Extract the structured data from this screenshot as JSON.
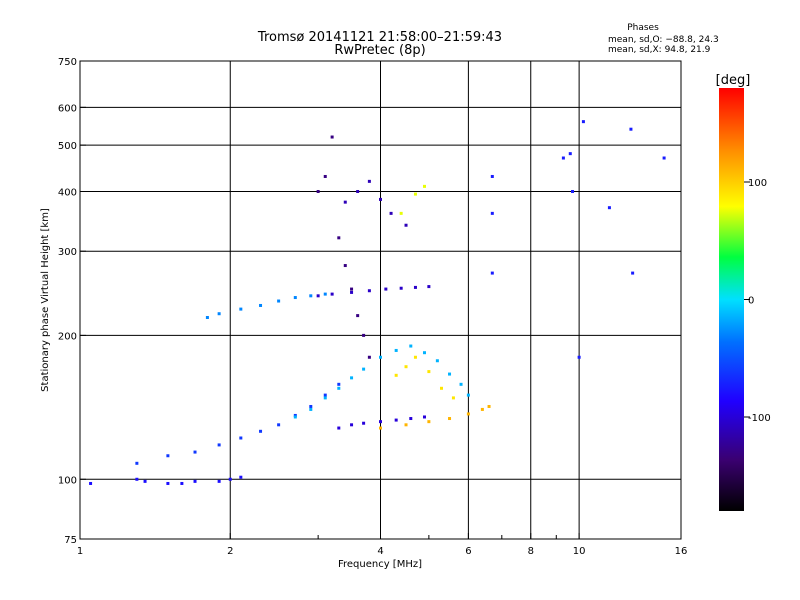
{
  "chart_data": {
    "type": "scatter",
    "title": "Tromsø 20141121 21:58:00–21:59:43",
    "subtitle": "RwPretec (8p)",
    "xlabel": "Frequency [MHz]",
    "ylabel": "Stationary phase Virtual Height [km]",
    "x_scale": "log",
    "y_scale": "log",
    "xlim": [
      1,
      16
    ],
    "ylim": [
      75,
      750
    ],
    "x_ticks": [
      1,
      2,
      4,
      6,
      8,
      10,
      16
    ],
    "x_tick_labels": [
      "1",
      "2",
      "4",
      "6",
      "8",
      "10",
      "16"
    ],
    "x_minor_ticks": [
      3,
      5,
      7,
      9
    ],
    "y_ticks": [
      75,
      100,
      200,
      300,
      400,
      500,
      600,
      750
    ],
    "y_tick_labels": [
      "75",
      "100",
      "200",
      "300",
      "400",
      "500",
      "600",
      "750"
    ],
    "grid": true,
    "legend": {
      "title": "Phases",
      "lines": [
        "mean, sd,O: −88.8, 24.3",
        "mean, sd,X:  94.8, 21.9"
      ],
      "position": "top-right"
    },
    "colorbar": {
      "label": "[deg]",
      "range": [
        -180,
        180
      ],
      "ticks": [
        100,
        0,
        -100
      ],
      "tick_labels": [
        "100",
        "0",
        "-100"
      ],
      "colormap": "rainbow"
    },
    "series": [
      {
        "x": [
          1.05,
          1.3,
          1.35,
          1.5,
          1.6,
          1.7,
          1.9,
          2.0,
          2.1
        ],
        "y": [
          98,
          100,
          99,
          98,
          98,
          99,
          99,
          100,
          101
        ],
        "phase": -105
      },
      {
        "x": [
          1.3,
          1.5,
          1.7,
          1.9,
          2.1,
          2.3,
          2.5,
          2.7,
          2.9,
          3.1,
          3.3
        ],
        "y": [
          108,
          112,
          114,
          118,
          122,
          126,
          130,
          136,
          142,
          150,
          158
        ],
        "phase": -90
      },
      {
        "x": [
          2.7,
          2.9,
          3.1,
          3.3,
          3.5,
          3.7,
          4.0,
          4.3,
          4.6,
          4.9,
          5.2,
          5.5,
          5.8,
          6.0
        ],
        "y": [
          135,
          140,
          148,
          155,
          163,
          170,
          180,
          186,
          190,
          184,
          177,
          166,
          158,
          150
        ],
        "phase": -40
      },
      {
        "x": [
          1.8,
          1.9,
          2.1,
          2.3,
          2.5,
          2.7,
          2.9,
          3.1
        ],
        "y": [
          218,
          222,
          227,
          231,
          236,
          240,
          242,
          244
        ],
        "phase": -60
      },
      {
        "x": [
          3.0,
          3.2,
          3.5,
          3.8,
          4.1,
          4.4,
          4.7,
          5.0
        ],
        "y": [
          242,
          244,
          246,
          248,
          250,
          251,
          252,
          253
        ],
        "phase": -125
      },
      {
        "x": [
          3.3,
          3.5,
          3.7,
          4.0,
          4.3,
          4.6,
          4.9
        ],
        "y": [
          128,
          130,
          131,
          132,
          133,
          134,
          135
        ],
        "phase": -120
      },
      {
        "x": [
          4.0,
          4.5,
          5.0,
          5.5,
          6.0,
          6.4,
          6.6
        ],
        "y": [
          128,
          130,
          132,
          134,
          137,
          140,
          142
        ],
        "phase": 115
      },
      {
        "x": [
          4.3,
          4.5,
          4.7,
          5.0,
          5.3,
          5.6
        ],
        "y": [
          165,
          172,
          180,
          168,
          155,
          148
        ],
        "phase": 95
      },
      {
        "x": [
          3.4,
          3.6,
          3.8,
          4.0,
          4.2,
          4.5
        ],
        "y": [
          380,
          400,
          420,
          385,
          360,
          340
        ],
        "phase": -130
      },
      {
        "x": [
          4.4,
          4.7,
          4.9
        ],
        "y": [
          360,
          395,
          410
        ],
        "phase": 80
      },
      {
        "x": [
          3.0,
          3.1,
          3.2,
          3.3,
          3.4,
          3.5,
          3.6,
          3.7,
          3.8
        ],
        "y": [
          400,
          430,
          520,
          320,
          280,
          250,
          220,
          200,
          180
        ],
        "phase": -145
      },
      {
        "x": [
          6.7,
          6.7,
          6.7,
          9.3,
          9.6,
          9.7,
          10.0,
          10.2,
          11.5,
          12.7,
          12.8,
          14.8
        ],
        "y": [
          430,
          360,
          270,
          470,
          480,
          400,
          180,
          560,
          370,
          540,
          270,
          470
        ],
        "phase": -100
      }
    ]
  }
}
